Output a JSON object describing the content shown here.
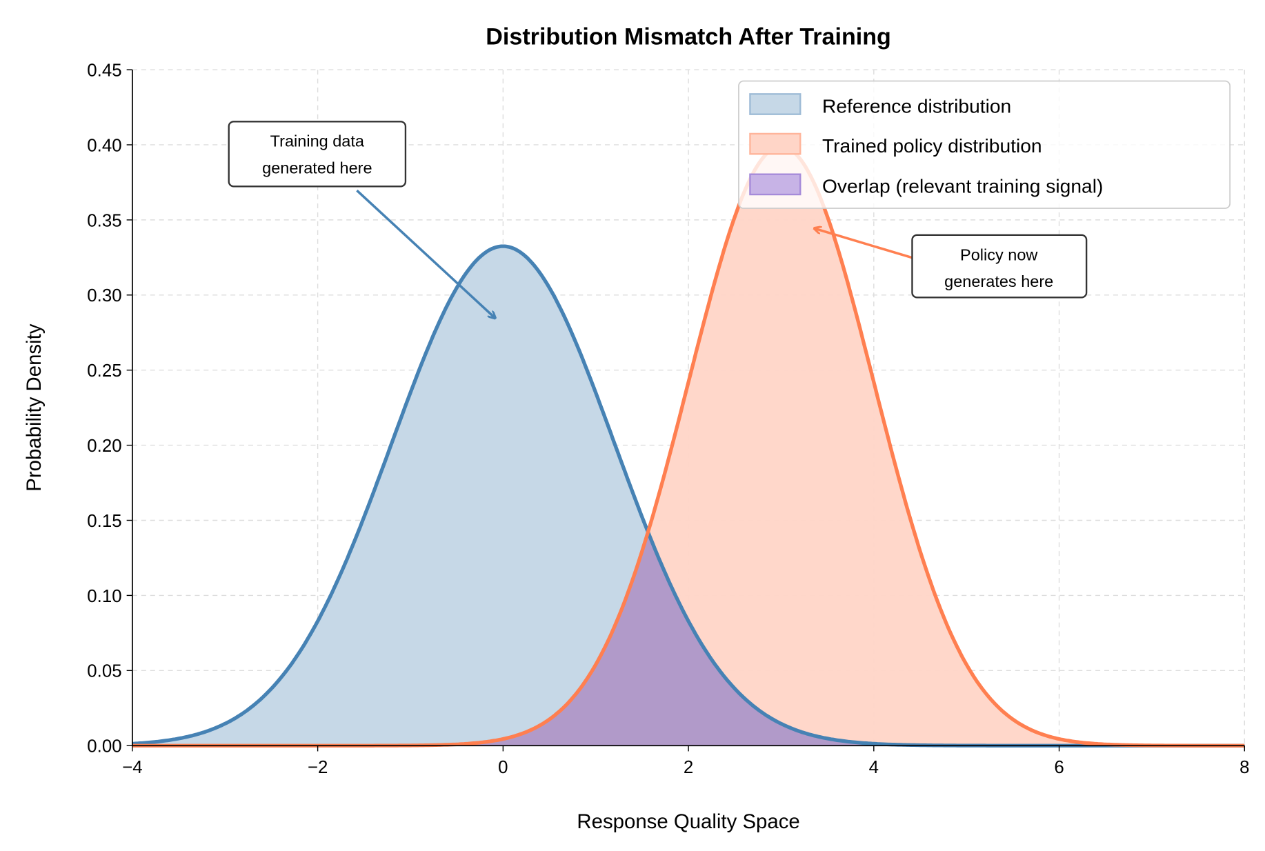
{
  "chart_data": {
    "type": "area",
    "title": "Distribution Mismatch After Training",
    "xlabel": "Response Quality Space",
    "ylabel": "Probability Density",
    "xlim": [
      -4,
      8
    ],
    "ylim": [
      0,
      0.45
    ],
    "xticks": [
      -4,
      -2,
      0,
      2,
      4,
      6,
      8
    ],
    "xtick_labels": [
      "−4",
      "−2",
      "0",
      "2",
      "4",
      "6",
      "8"
    ],
    "yticks": [
      0,
      0.05,
      0.1,
      0.15,
      0.2,
      0.25,
      0.3,
      0.35,
      0.4,
      0.45
    ],
    "ytick_labels": [
      "0.00",
      "0.05",
      "0.10",
      "0.15",
      "0.20",
      "0.25",
      "0.30",
      "0.35",
      "0.40",
      "0.45"
    ],
    "grid": true,
    "legend_position": "top-right",
    "series": [
      {
        "name": "Reference distribution",
        "distribution": "normal",
        "mean": 0,
        "std": 1.2,
        "peak": 0.332,
        "color": "#4682b4",
        "fill": "#c6d8e7"
      },
      {
        "name": "Trained policy distribution",
        "distribution": "normal",
        "mean": 3,
        "std": 1.0,
        "peak": 0.399,
        "color": "#ff7f50",
        "fill": "#ffd5c7"
      },
      {
        "name": "Overlap (relevant training signal)",
        "distribution": "min of both",
        "color": "#9370db",
        "fill": "#b19ac9"
      }
    ],
    "annotations": [
      {
        "text": [
          "Training data",
          "generated here"
        ],
        "color": "#4682b4"
      },
      {
        "text": [
          "Policy now",
          "generates here"
        ],
        "color": "#ff7f50"
      }
    ]
  }
}
